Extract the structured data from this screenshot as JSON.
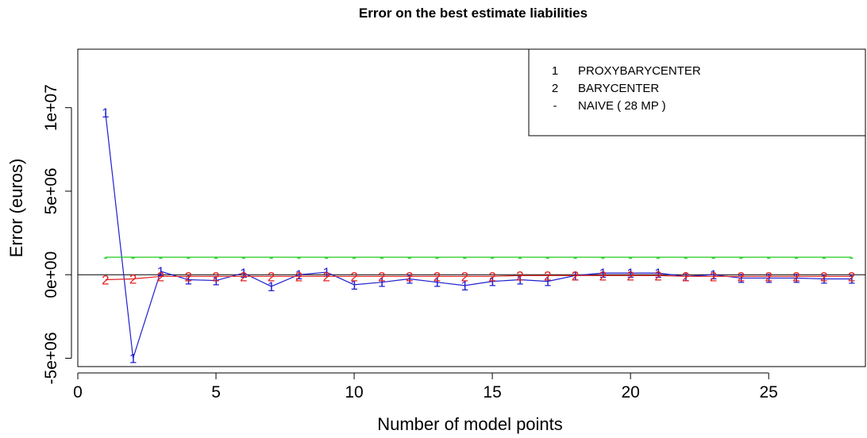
{
  "chart_data": {
    "type": "line",
    "title": "Error on the best estimate liabilities",
    "xlabel": "Number of model points",
    "ylabel": "Error (euros)",
    "xlim": [
      0,
      28.5
    ],
    "ylim": [
      -5500000,
      13500000
    ],
    "x_ticks": [
      0,
      5,
      10,
      15,
      20,
      25
    ],
    "x_tick_labels": [
      "0",
      "5",
      "10",
      "15",
      "20",
      "25"
    ],
    "y_ticks": [
      -5000000,
      0,
      5000000,
      10000000
    ],
    "y_tick_labels": [
      "-5e+06",
      "0e+00",
      "5e+06",
      "1e+07"
    ],
    "reference_line": 0,
    "legend_position": "top-right",
    "x": [
      1,
      2,
      3,
      4,
      5,
      6,
      7,
      8,
      9,
      10,
      11,
      12,
      13,
      14,
      15,
      16,
      17,
      18,
      19,
      20,
      21,
      22,
      23,
      24,
      25,
      26,
      27,
      28
    ],
    "series": [
      {
        "name": "PROXYBARYCENTER",
        "marker": "1",
        "color": "#1f1fd0",
        "values": [
          9700000,
          -5000000,
          200000,
          -300000,
          -350000,
          100000,
          -700000,
          0,
          150000,
          -600000,
          -450000,
          -250000,
          -450000,
          -650000,
          -400000,
          -300000,
          -400000,
          -50000,
          100000,
          100000,
          100000,
          -100000,
          0,
          -200000,
          -200000,
          -200000,
          -250000,
          -250000
        ]
      },
      {
        "name": "BARYCENTER",
        "marker": "2",
        "color": "#e0201f",
        "values": [
          -300000,
          -250000,
          -100000,
          -100000,
          -100000,
          -100000,
          -100000,
          -100000,
          -100000,
          -100000,
          -100000,
          -100000,
          -100000,
          -100000,
          -100000,
          -50000,
          -50000,
          -50000,
          -50000,
          -50000,
          -50000,
          -100000,
          -100000,
          -100000,
          -100000,
          -100000,
          -100000,
          -100000
        ]
      },
      {
        "name": "NAIVE ( 28 MP )",
        "marker": "-",
        "color": "#22cc22",
        "values": [
          1050000,
          1050000,
          1050000,
          1050000,
          1050000,
          1050000,
          1050000,
          1050000,
          1050000,
          1050000,
          1050000,
          1050000,
          1050000,
          1050000,
          1050000,
          1050000,
          1050000,
          1050000,
          1050000,
          1050000,
          1050000,
          1050000,
          1050000,
          1050000,
          1050000,
          1050000,
          1050000,
          1050000
        ]
      }
    ]
  }
}
